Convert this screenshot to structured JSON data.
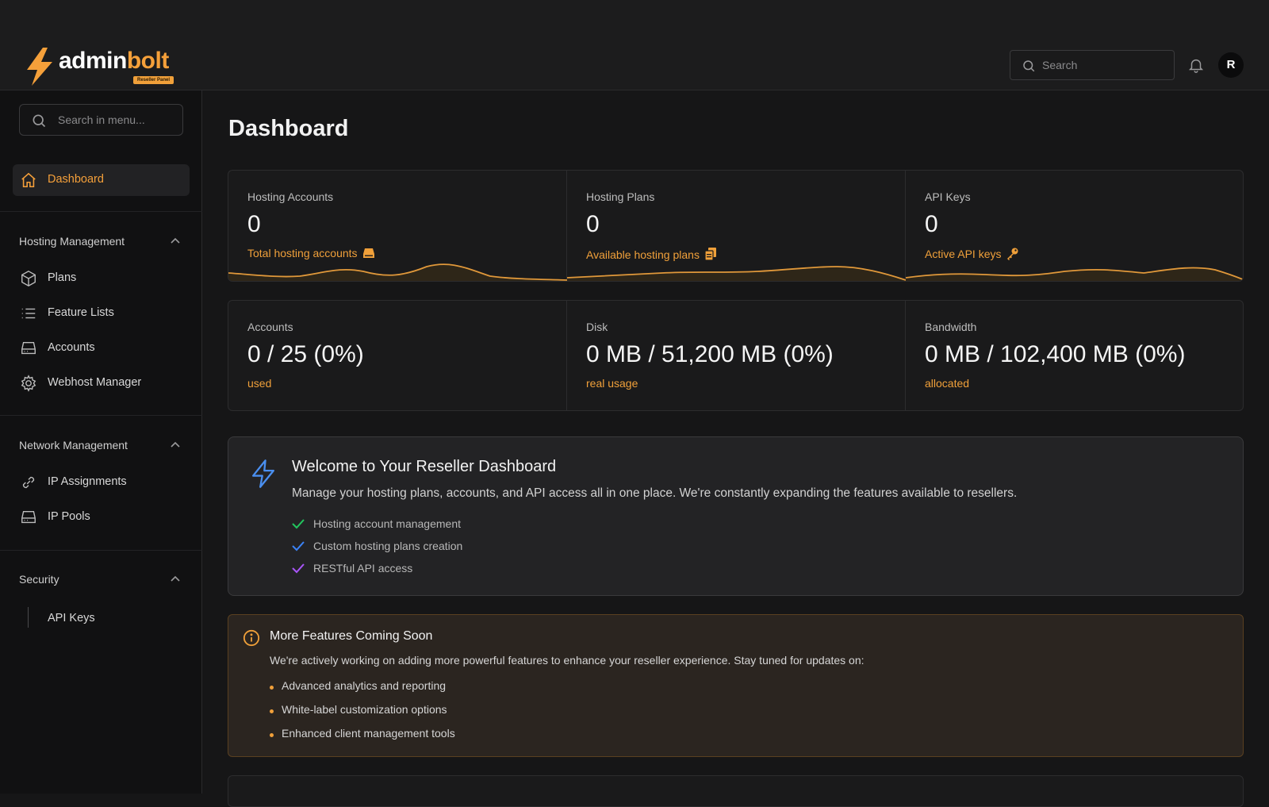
{
  "brand": {
    "name_part1": "admin",
    "name_part2": "bolt",
    "badge": "Reseller Panel",
    "accent": "#f5a03a"
  },
  "header": {
    "search_placeholder": "Search",
    "avatar_initial": "R"
  },
  "sidebar": {
    "search_placeholder": "Search in menu...",
    "dashboard": {
      "label": "Dashboard",
      "icon": "home-icon"
    },
    "sections": [
      {
        "title": "Hosting Management",
        "items": [
          {
            "label": "Plans",
            "icon": "cube-icon"
          },
          {
            "label": "Feature Lists",
            "icon": "list-icon"
          },
          {
            "label": "Accounts",
            "icon": "server-icon"
          },
          {
            "label": "Webhost Manager",
            "icon": "gear-icon"
          }
        ]
      },
      {
        "title": "Network Management",
        "items": [
          {
            "label": "IP Assignments",
            "icon": "link-icon"
          },
          {
            "label": "IP Pools",
            "icon": "server-icon"
          }
        ]
      },
      {
        "title": "Security",
        "items": [
          {
            "label": "API Keys"
          }
        ]
      }
    ]
  },
  "main": {
    "title": "Dashboard",
    "stats_row1": [
      {
        "label": "Hosting Accounts",
        "value": "0",
        "sub": "Total hosting accounts",
        "icon": "server-icon"
      },
      {
        "label": "Hosting Plans",
        "value": "0",
        "sub": "Available hosting plans",
        "icon": "documents-icon"
      },
      {
        "label": "API Keys",
        "value": "0",
        "sub": "Active API keys",
        "icon": "key-icon"
      }
    ],
    "stats_row2": [
      {
        "label": "Accounts",
        "value": "0 / 25 (0%)",
        "sub": "used"
      },
      {
        "label": "Disk",
        "value": "0 MB / 51,200 MB (0%)",
        "sub": "real usage"
      },
      {
        "label": "Bandwidth",
        "value": "0 MB / 102,400 MB (0%)",
        "sub": "allocated"
      }
    ],
    "welcome": {
      "title": "Welcome to Your Reseller Dashboard",
      "description": "Manage your hosting plans, accounts, and API access all in one place. We're constantly expanding the features available to resellers.",
      "features": [
        {
          "text": "Hosting account management",
          "color": "#22c55e"
        },
        {
          "text": "Custom hosting plans creation",
          "color": "#3b82f6"
        },
        {
          "text": "RESTful API access",
          "color": "#a855f7"
        }
      ]
    },
    "coming_soon": {
      "title": "More Features Coming Soon",
      "description": "We're actively working on adding more powerful features to enhance your reseller experience. Stay tuned for updates on:",
      "items": [
        "Advanced analytics and reporting",
        "White-label customization options",
        "Enhanced client management tools"
      ]
    }
  }
}
